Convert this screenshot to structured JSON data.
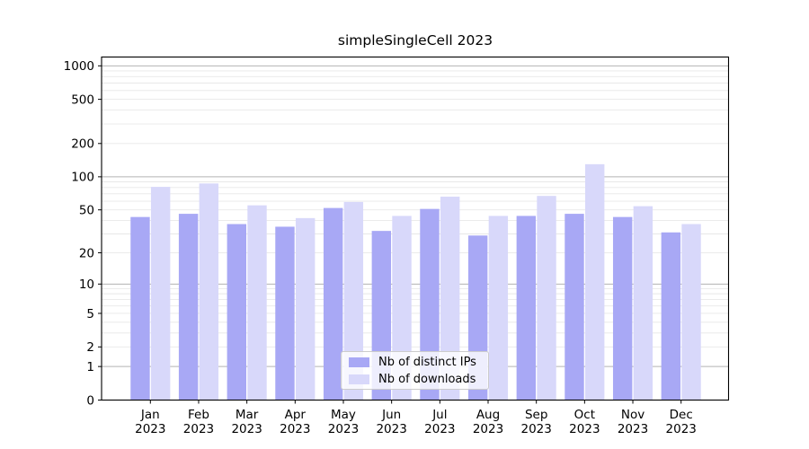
{
  "chart_data": {
    "type": "bar",
    "title": "simpleSingleCell 2023",
    "categories": [
      "Jan",
      "Feb",
      "Mar",
      "Apr",
      "May",
      "Jun",
      "Jul",
      "Aug",
      "Sep",
      "Oct",
      "Nov",
      "Dec"
    ],
    "x_tick_year": "2023",
    "series": [
      {
        "name": "Nb of distinct IPs",
        "color": "#a8a8f5",
        "values": [
          43,
          46,
          37,
          35,
          52,
          32,
          51,
          29,
          44,
          46,
          43,
          31
        ]
      },
      {
        "name": "Nb of downloads",
        "color": "#d8d8fa",
        "values": [
          81,
          87,
          55,
          42,
          59,
          44,
          66,
          44,
          67,
          130,
          54,
          37
        ]
      }
    ],
    "yticks": [
      0,
      1,
      2,
      5,
      10,
      20,
      50,
      100,
      200,
      500,
      1000
    ],
    "ylim": [
      0,
      1200
    ],
    "yscale": "log1p",
    "grid": {
      "major_values": [
        1,
        10,
        100,
        1000
      ],
      "minor_decades": [
        1,
        10,
        100
      ]
    },
    "legend_position": "lower center",
    "xlabel": "",
    "ylabel": ""
  },
  "colors": {
    "background": "#ffffff",
    "spine": "#000000",
    "tick_text": "#000000",
    "major_grid": "#b3b3b3",
    "minor_grid": "#e8e8e8",
    "legend_border": "#cccccc"
  }
}
